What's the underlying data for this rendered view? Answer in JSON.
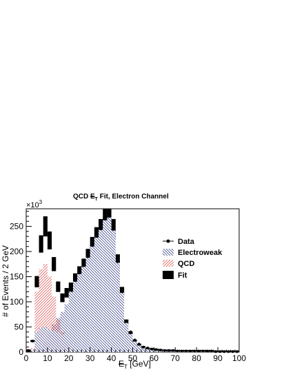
{
  "chart_data": {
    "type": "histogram",
    "title_prefix": "QCD ",
    "title_met": "E",
    "title_sub": "T",
    "title_suffix": " Fit, Electron Channel",
    "multiplier": "×10",
    "multiplier_exp": "3",
    "xlabel_met": "E",
    "xlabel_sub": "T",
    "xlabel_unit": " [GeV]",
    "ylabel": "# of Events / 2 GeV",
    "xlim": [
      0,
      100
    ],
    "ylim": [
      0,
      285
    ],
    "xticks": [
      0,
      10,
      20,
      30,
      40,
      50,
      60,
      70,
      80,
      90,
      100
    ],
    "xtick_labels": [
      "0",
      "10",
      "20",
      "30",
      "40",
      "50",
      "60",
      "70",
      "80",
      "90",
      "100"
    ],
    "yticks": [
      0,
      50,
      100,
      150,
      200,
      250
    ],
    "ytick_labels": [
      "0",
      "50",
      "100",
      "150",
      "200",
      "250"
    ],
    "bin_width": 2,
    "legend_position": "right",
    "legend": [
      {
        "key": "data",
        "label": "Data"
      },
      {
        "key": "ewk",
        "label": "Electroweak"
      },
      {
        "key": "qcd",
        "label": "QCD"
      },
      {
        "key": "fit",
        "label": "Fit"
      }
    ],
    "colors": {
      "ewk": "#1f2a7a",
      "qcd": "#d93b3b",
      "fit": "#000000",
      "data": "#000000"
    },
    "bins_low": [
      0,
      2,
      4,
      6,
      8,
      10,
      12,
      14,
      16,
      18,
      20,
      22,
      24,
      26,
      28,
      30,
      32,
      34,
      36,
      38,
      40,
      42,
      44,
      46,
      48,
      50,
      52,
      54,
      56,
      58,
      60,
      62,
      64,
      66,
      68,
      70,
      72,
      74,
      76,
      78,
      80,
      82,
      84,
      86,
      88,
      90,
      92,
      94,
      96,
      98
    ],
    "fit": [
      3,
      22,
      140,
      215,
      250,
      222,
      175,
      130,
      108,
      118,
      128,
      145,
      158,
      172,
      190,
      212,
      230,
      245,
      265,
      272,
      245,
      180,
      120,
      60,
      38,
      22,
      14,
      10,
      7,
      6,
      5,
      4,
      3,
      3,
      3,
      2,
      2,
      2,
      2,
      2,
      2,
      2,
      2,
      2,
      1,
      1,
      1,
      1,
      1,
      1
    ],
    "qcd": [
      1,
      8,
      120,
      165,
      175,
      150,
      110,
      65,
      40,
      15,
      5,
      2,
      1,
      0,
      0,
      0,
      0,
      0,
      0,
      0,
      0,
      0,
      0,
      0,
      0,
      0,
      0,
      0,
      0,
      0,
      0,
      0,
      0,
      0,
      0,
      0,
      0,
      0,
      0,
      0,
      0,
      0,
      0,
      0,
      0,
      0,
      0,
      0,
      0,
      0
    ],
    "qcd_low": [
      1,
      4,
      40,
      48,
      50,
      45,
      42,
      40,
      35,
      28,
      18,
      8,
      3,
      1,
      0,
      0,
      0,
      0,
      0,
      0,
      0,
      0,
      0,
      0,
      0,
      0,
      0,
      0,
      0,
      0,
      0,
      0,
      0,
      0,
      0,
      0,
      0,
      0,
      0,
      0,
      0,
      0,
      0,
      0,
      0,
      0,
      0,
      0,
      0,
      0
    ],
    "ewk": [
      0,
      0,
      2,
      8,
      20,
      38,
      55,
      68,
      80,
      95,
      120,
      140,
      155,
      170,
      188,
      210,
      228,
      243,
      262,
      268,
      242,
      178,
      118,
      58,
      36,
      21,
      13,
      9,
      6,
      5,
      4,
      3,
      3,
      2,
      2,
      2,
      2,
      2,
      2,
      2,
      2,
      2,
      1,
      1,
      1,
      1,
      1,
      1,
      1,
      1
    ],
    "data": [
      3,
      22,
      140,
      210,
      245,
      218,
      172,
      132,
      110,
      120,
      130,
      146,
      160,
      172,
      190,
      212,
      230,
      245,
      265,
      270,
      244,
      180,
      120,
      62,
      40,
      24,
      16,
      10,
      8,
      6,
      5,
      4,
      3,
      3,
      3,
      2,
      2,
      2,
      2,
      2,
      2,
      2,
      2,
      2,
      1,
      1,
      1,
      1,
      1,
      1
    ]
  }
}
